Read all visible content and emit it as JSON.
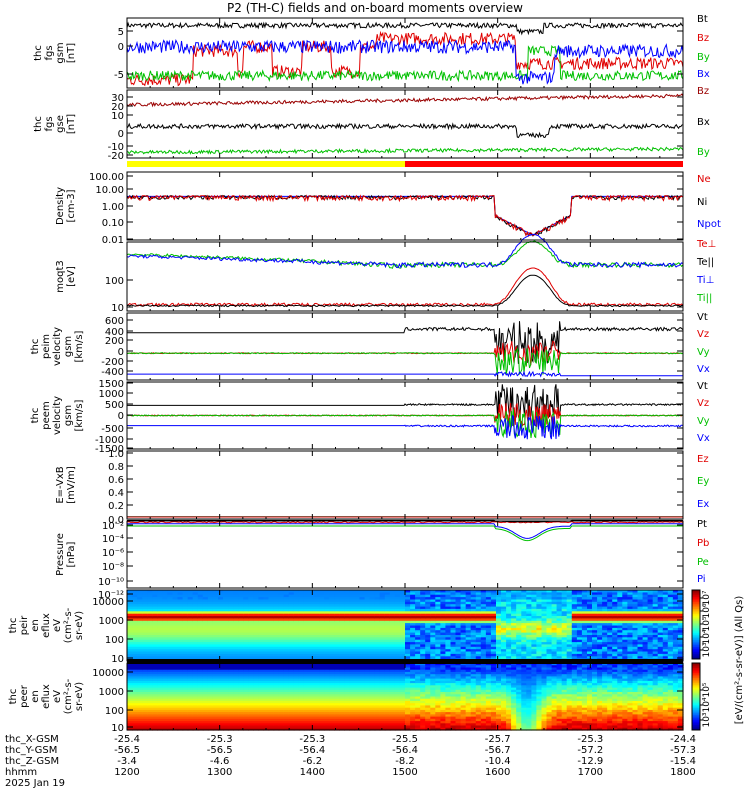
{
  "title": "P2 (TH-C) fields and on-board moments overview",
  "colors": {
    "black": "#000000",
    "red": "#e00000",
    "green": "#00c000",
    "blue": "#0000ff",
    "darkred": "#9a0000",
    "yellow": "#ffff00"
  },
  "chart_data": [
    {
      "type": "line",
      "name": "fgs_gsm",
      "ylabel": [
        "thc",
        "fgs",
        "gsm",
        "[nT]"
      ],
      "yticks": [
        "5",
        "0",
        "-5"
      ],
      "ylim": [
        -7,
        10
      ],
      "series": [
        {
          "name": "Bt",
          "color": "#000000"
        },
        {
          "name": "Bz",
          "color": "#e00000"
        },
        {
          "name": "By",
          "color": "#00c000"
        },
        {
          "name": "Bx",
          "color": "#0000ff"
        }
      ],
      "x": [
        1200,
        1300,
        1400,
        1500,
        1600,
        1700,
        1800
      ]
    },
    {
      "type": "line",
      "name": "fgs_gse",
      "ylabel": [
        "thc",
        "fgs",
        "gse",
        "[nT]"
      ],
      "yticks": [
        "30",
        "20",
        "10",
        "0",
        "-10",
        "-20"
      ],
      "ylim": [
        -25,
        35
      ],
      "series": [
        {
          "name": "Bz",
          "color": "#9a0000"
        },
        {
          "name": "Bx",
          "color": "#000000"
        },
        {
          "name": "By",
          "color": "#00c000"
        }
      ]
    },
    {
      "type": "line",
      "name": "density",
      "ylabel": [
        "Density",
        "[cm-3]"
      ],
      "yticks": [
        "100.00",
        "10.00",
        "1.00",
        "0.10",
        "0.01"
      ],
      "scale": "log",
      "series": [
        {
          "name": "Ne",
          "color": "#e00000"
        },
        {
          "name": "Ni",
          "color": "#000000"
        },
        {
          "name": "Npot",
          "color": "#0000ff"
        }
      ]
    },
    {
      "type": "line",
      "name": "temperature",
      "ylabel": [
        "moqt3",
        "[eV]"
      ],
      "yticks": [
        "100",
        "10"
      ],
      "scale": "log",
      "series": [
        {
          "name": "Te⊥",
          "color": "#e00000"
        },
        {
          "name": "Te||",
          "color": "#000000"
        },
        {
          "name": "Ti⊥",
          "color": "#0000ff"
        },
        {
          "name": "Ti||",
          "color": "#00c000"
        }
      ]
    },
    {
      "type": "line",
      "name": "peim_velocity",
      "ylabel": [
        "thc",
        "peim",
        "velocity",
        "gsm",
        "[km/s]"
      ],
      "yticks": [
        "600",
        "400",
        "200",
        "0",
        "-200",
        "-400"
      ],
      "series": [
        {
          "name": "Vt",
          "color": "#000000"
        },
        {
          "name": "Vz",
          "color": "#e00000"
        },
        {
          "name": "Vy",
          "color": "#00c000"
        },
        {
          "name": "Vx",
          "color": "#0000ff"
        }
      ]
    },
    {
      "type": "line",
      "name": "peem_velocity",
      "ylabel": [
        "thc",
        "peem",
        "velocity",
        "gsm",
        "[km/s]"
      ],
      "yticks": [
        "1500",
        "1000",
        "500",
        "0",
        "-500",
        "-1000",
        "-1500"
      ],
      "series": [
        {
          "name": "Vt",
          "color": "#000000"
        },
        {
          "name": "Vz",
          "color": "#e00000"
        },
        {
          "name": "Vy",
          "color": "#00c000"
        },
        {
          "name": "Vx",
          "color": "#0000ff"
        }
      ]
    },
    {
      "type": "line",
      "name": "efield",
      "ylabel": [
        "E=-VxB",
        "[mV/m]"
      ],
      "yticks": [
        "1.0",
        "0.8",
        "0.6",
        "0.4",
        "0.2",
        "0.0"
      ],
      "series": [
        {
          "name": "Ez",
          "color": "#e00000"
        },
        {
          "name": "Ey",
          "color": "#00c000"
        },
        {
          "name": "Ex",
          "color": "#0000ff"
        }
      ]
    },
    {
      "type": "line",
      "name": "pressure",
      "ylabel": [
        "Pressure",
        "[nPa]"
      ],
      "yticks": [
        "10⁻²",
        "10⁻⁴",
        "10⁻⁶",
        "10⁻⁸",
        "10⁻¹⁰",
        "10⁻¹²"
      ],
      "scale": "log",
      "series": [
        {
          "name": "Pt",
          "color": "#000000"
        },
        {
          "name": "Pb",
          "color": "#e00000"
        },
        {
          "name": "Pe",
          "color": "#00c000"
        },
        {
          "name": "Pi",
          "color": "#0000ff"
        }
      ]
    },
    {
      "type": "heatmap",
      "name": "peir_spectrogram",
      "ylabel": [
        "thc",
        "peir",
        "en",
        "eflux",
        "eV",
        "(cm²-s-",
        "sr-eV)"
      ],
      "yticks": [
        "10000",
        "1000",
        "100",
        "10"
      ]
    },
    {
      "type": "heatmap",
      "name": "peer_spectrogram",
      "ylabel": [
        "thc",
        "peer",
        "en",
        "eflux",
        "eV",
        "(cm²-s-",
        "sr-eV)"
      ],
      "yticks": [
        "10000",
        "1000",
        "100",
        "10"
      ]
    }
  ],
  "colorbar": {
    "label": "[eV/(cm²-s-sr-eV)] (All Qs)",
    "ticks": [
      "10⁷",
      "10⁶",
      "10⁵",
      "10⁴",
      "10³",
      "10⁵",
      "10⁴",
      "10³"
    ]
  },
  "xaxis": {
    "row_labels": [
      "thc_X-GSM",
      "thc_Y-GSM",
      "thc_Z-GSM",
      "hhmm",
      "2025 Jan 19"
    ],
    "columns": [
      {
        "x": "-25.4",
        "y": "-56.5",
        "z": "-3.4",
        "hhmm": "1200"
      },
      {
        "x": "-25.3",
        "y": "-56.5",
        "z": "-4.6",
        "hhmm": "1300"
      },
      {
        "x": "-25.3",
        "y": "-56.4",
        "z": "-6.2",
        "hhmm": "1400"
      },
      {
        "x": "-25.5",
        "y": "-56.4",
        "z": "-8.2",
        "hhmm": "1500"
      },
      {
        "x": "-25.7",
        "y": "-56.7",
        "z": "-10.4",
        "hhmm": "1600"
      },
      {
        "x": "-25.3",
        "y": "-57.2",
        "z": "-12.9",
        "hhmm": "1700"
      },
      {
        "x": "-24.4",
        "y": "-57.3",
        "z": "-15.4",
        "hhmm": "1800"
      }
    ]
  }
}
